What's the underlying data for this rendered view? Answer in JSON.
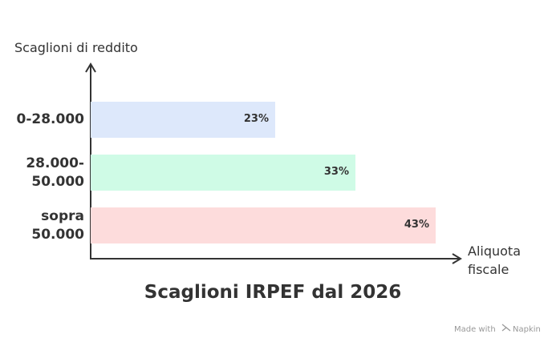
{
  "chart_data": {
    "type": "bar",
    "orientation": "horizontal",
    "title": "Scaglioni IRPEF dal 2026",
    "y_label": "Scaglioni di reddito",
    "x_label": "Aliquota\nfiscale",
    "categories": [
      "0-28.000",
      "28.000-\n50.000",
      "sopra\n50.000"
    ],
    "series": [
      {
        "name": null,
        "values": [
          23,
          33,
          43
        ],
        "value_labels": [
          "23%",
          "33%",
          "43%"
        ],
        "colors": [
          "#dde8fb",
          "#cffbe6",
          "#fddcdc"
        ]
      }
    ],
    "xlim": [
      0,
      46
    ],
    "watermark": [
      "Made with",
      "Napkin"
    ]
  }
}
